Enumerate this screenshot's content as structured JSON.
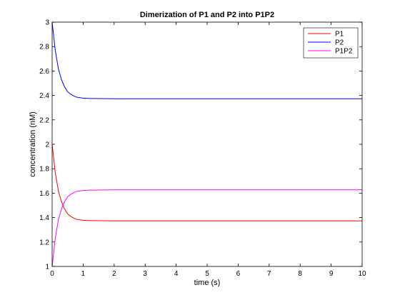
{
  "chart_data": {
    "type": "line",
    "title": "Dimerization of P1 and P2 into P1P2",
    "xlabel": "time (s)",
    "ylabel": "concentration (nM)",
    "xlim": [
      0,
      10
    ],
    "ylim": [
      1,
      3
    ],
    "xticks": [
      0,
      1,
      2,
      3,
      4,
      5,
      6,
      7,
      8,
      9,
      10
    ],
    "yticks": [
      1,
      1.2,
      1.4,
      1.6,
      1.8,
      2,
      2.2,
      2.4,
      2.6,
      2.8,
      3
    ],
    "grid": false,
    "legend_position": "top-right",
    "x": [
      0,
      0.1,
      0.2,
      0.3,
      0.4,
      0.5,
      0.6,
      0.7,
      0.8,
      1.0,
      1.2,
      1.5,
      2,
      3,
      4,
      5,
      6,
      7,
      8,
      9,
      10
    ],
    "series": [
      {
        "name": "P1",
        "color": "#ff0000",
        "values": [
          2.0,
          1.77,
          1.62,
          1.53,
          1.47,
          1.43,
          1.41,
          1.395,
          1.385,
          1.378,
          1.375,
          1.374,
          1.373,
          1.373,
          1.373,
          1.373,
          1.373,
          1.373,
          1.373,
          1.373,
          1.373
        ]
      },
      {
        "name": "P2",
        "color": "#0000ff",
        "values": [
          3.0,
          2.77,
          2.62,
          2.53,
          2.47,
          2.43,
          2.41,
          2.395,
          2.385,
          2.378,
          2.375,
          2.374,
          2.373,
          2.373,
          2.373,
          2.373,
          2.373,
          2.373,
          2.373,
          2.373,
          2.373
        ]
      },
      {
        "name": "P1P2",
        "color": "#ff00ff",
        "values": [
          1.0,
          1.23,
          1.38,
          1.47,
          1.53,
          1.57,
          1.59,
          1.605,
          1.615,
          1.622,
          1.625,
          1.626,
          1.627,
          1.627,
          1.627,
          1.627,
          1.627,
          1.627,
          1.627,
          1.627,
          1.627
        ]
      }
    ]
  }
}
